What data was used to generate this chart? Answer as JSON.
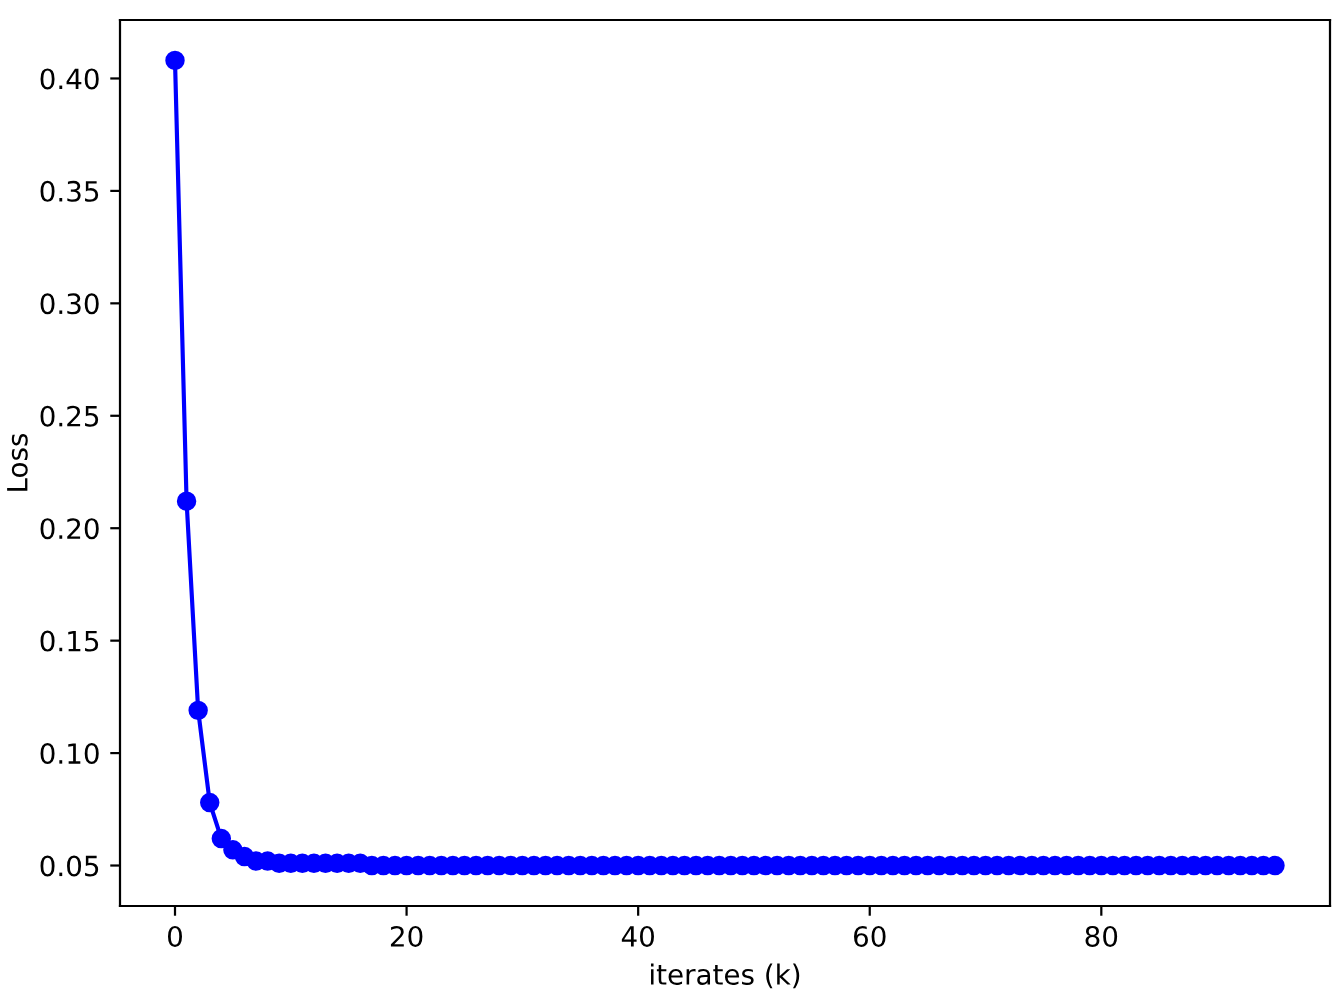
{
  "chart_data": {
    "type": "line",
    "xlabel": "iterates (k)",
    "ylabel": "Loss",
    "x": [
      0,
      1,
      2,
      3,
      4,
      5,
      6,
      7,
      8,
      9,
      10,
      11,
      12,
      13,
      14,
      15,
      16,
      17,
      18,
      19,
      20,
      21,
      22,
      23,
      24,
      25,
      26,
      27,
      28,
      29,
      30,
      31,
      32,
      33,
      34,
      35,
      36,
      37,
      38,
      39,
      40,
      41,
      42,
      43,
      44,
      45,
      46,
      47,
      48,
      49,
      50,
      51,
      52,
      53,
      54,
      55,
      56,
      57,
      58,
      59,
      60,
      61,
      62,
      63,
      64,
      65,
      66,
      67,
      68,
      69,
      70,
      71,
      72,
      73,
      74,
      75,
      76,
      77,
      78,
      79,
      80,
      81,
      82,
      83,
      84,
      85,
      86,
      87,
      88,
      89,
      90,
      91,
      92,
      93,
      94,
      95
    ],
    "series": [
      {
        "color": "#0000ff",
        "values": [
          0.408,
          0.212,
          0.119,
          0.078,
          0.062,
          0.057,
          0.054,
          0.052,
          0.052,
          0.051,
          0.051,
          0.051,
          0.051,
          0.051,
          0.051,
          0.051,
          0.051,
          0.05,
          0.05,
          0.05,
          0.05,
          0.05,
          0.05,
          0.05,
          0.05,
          0.05,
          0.05,
          0.05,
          0.05,
          0.05,
          0.05,
          0.05,
          0.05,
          0.05,
          0.05,
          0.05,
          0.05,
          0.05,
          0.05,
          0.05,
          0.05,
          0.05,
          0.05,
          0.05,
          0.05,
          0.05,
          0.05,
          0.05,
          0.05,
          0.05,
          0.05,
          0.05,
          0.05,
          0.05,
          0.05,
          0.05,
          0.05,
          0.05,
          0.05,
          0.05,
          0.05,
          0.05,
          0.05,
          0.05,
          0.05,
          0.05,
          0.05,
          0.05,
          0.05,
          0.05,
          0.05,
          0.05,
          0.05,
          0.05,
          0.05,
          0.05,
          0.05,
          0.05,
          0.05,
          0.05,
          0.05,
          0.05,
          0.05,
          0.05,
          0.05,
          0.05,
          0.05,
          0.05,
          0.05,
          0.05,
          0.05,
          0.05,
          0.05,
          0.05,
          0.05,
          0.05
        ]
      }
    ],
    "marker": "circle",
    "line_style": "solid",
    "grid": false,
    "legend": false,
    "xlim": [
      -4.75,
      99.75
    ],
    "xticks": [
      0,
      20,
      40,
      60,
      80
    ],
    "ylim": [
      0.032,
      0.426
    ],
    "yticks": [
      {
        "value": 0.05,
        "label": "0.05"
      },
      {
        "value": 0.1,
        "label": "0.10"
      },
      {
        "value": 0.15,
        "label": "0.15"
      },
      {
        "value": 0.2,
        "label": "0.20"
      },
      {
        "value": 0.25,
        "label": "0.25"
      },
      {
        "value": 0.3,
        "label": "0.30"
      },
      {
        "value": 0.35,
        "label": "0.35"
      },
      {
        "value": 0.4,
        "label": "0.40"
      }
    ]
  }
}
